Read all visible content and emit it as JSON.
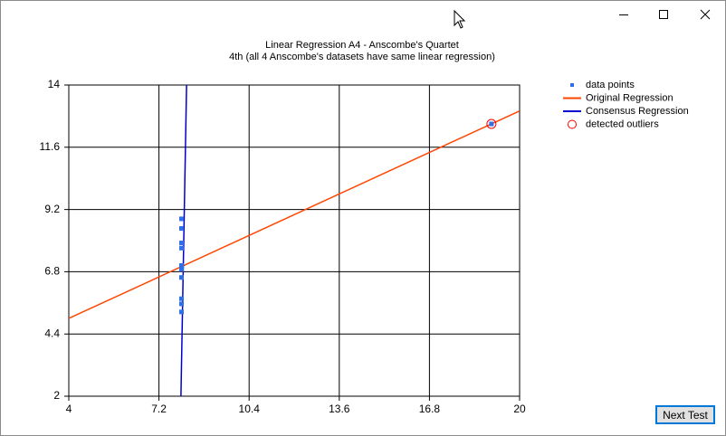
{
  "chart_data": {
    "type": "scatter",
    "title": "Linear Regression A4 - Anscombe's Quartet",
    "subtitle": "4th (all 4 Anscombe's datasets have same linear regression)",
    "xlim": [
      4,
      20
    ],
    "xticks": [
      4,
      7.2,
      10.4,
      13.6,
      16.8,
      20
    ],
    "ylim": [
      2,
      14
    ],
    "yticks": [
      2,
      4.4,
      6.8,
      9.2,
      11.6,
      14
    ],
    "grid": true,
    "legend": "right",
    "series": [
      {
        "name": "data points",
        "color": "#2f6fe8",
        "style": "markers",
        "x": [
          8,
          8,
          8,
          8,
          8,
          8,
          8,
          19,
          8,
          8,
          8
        ],
        "values": [
          6.58,
          5.76,
          7.71,
          8.84,
          8.47,
          7.04,
          5.25,
          12.5,
          5.56,
          7.91,
          6.89
        ]
      },
      {
        "name": "Original Regression",
        "color": "#ff4500",
        "style": "line",
        "x": [
          4,
          20
        ],
        "values": [
          5,
          13
        ]
      },
      {
        "name": "Consensus Regression",
        "color": "#0000cd",
        "style": "line",
        "x": [
          7.98,
          8.18
        ],
        "values": [
          2,
          14
        ]
      },
      {
        "name": "detected outliers",
        "color": "#ff0000",
        "style": "circles",
        "x": [
          19
        ],
        "values": [
          12.5
        ]
      }
    ]
  },
  "button": {
    "label": "Next Test"
  }
}
